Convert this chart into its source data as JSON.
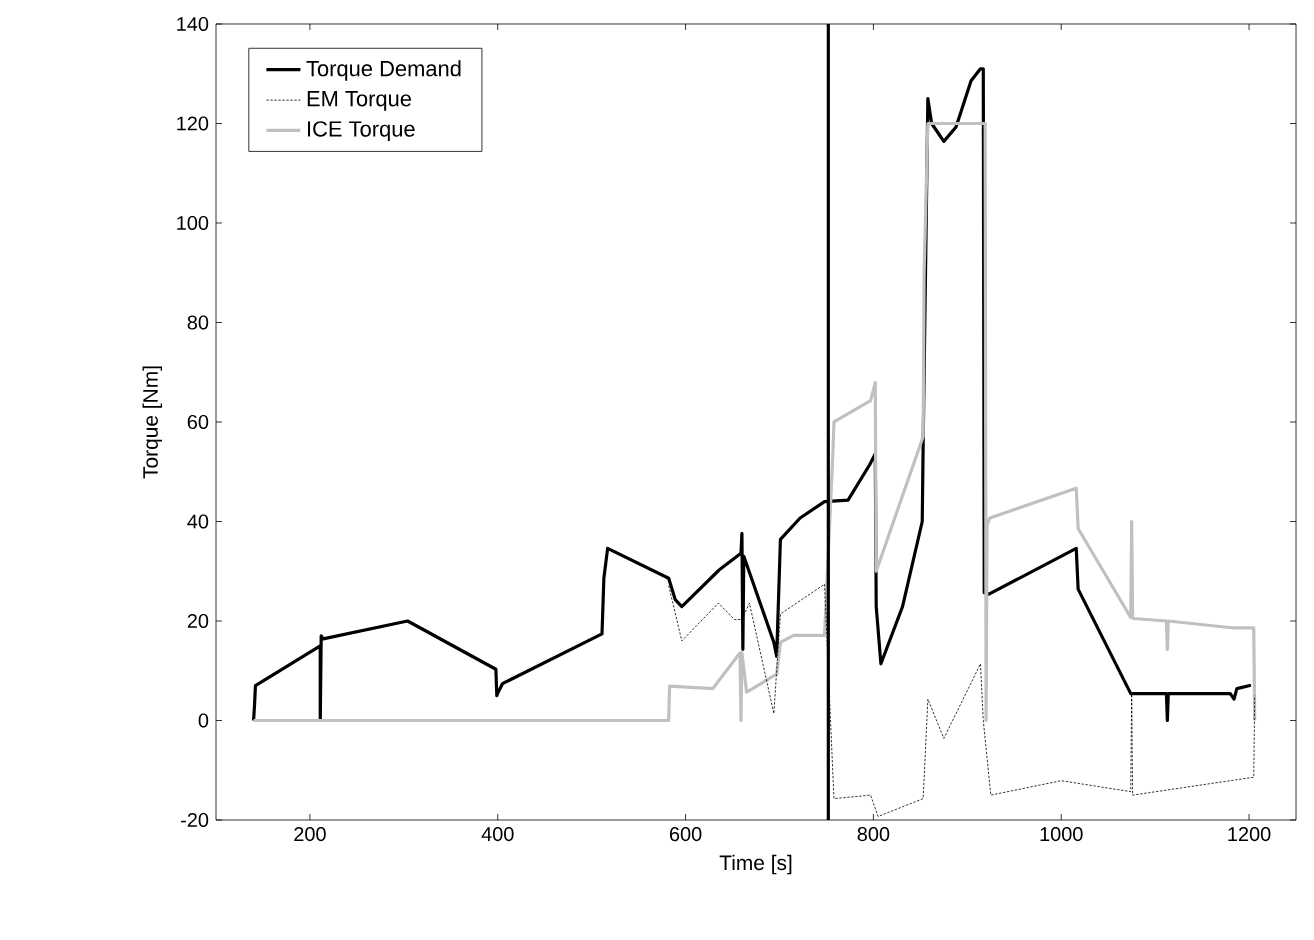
{
  "chart_data": {
    "type": "line",
    "xlabel": "Time [s]",
    "ylabel": "Torque [Nm]",
    "xlim": [
      100,
      1250
    ],
    "ylim": [
      -20,
      140
    ],
    "xticks": [
      200,
      400,
      600,
      800,
      1000,
      1200
    ],
    "yticks": [
      -20,
      0,
      20,
      40,
      60,
      80,
      100,
      120,
      140
    ],
    "grid": false,
    "legend": "top left",
    "marker": "none",
    "ref_lines": [
      {
        "axis": "x",
        "value": 752,
        "color": "#000000"
      }
    ],
    "series": [
      {
        "name": "Torque Demand",
        "color": "#000000",
        "line_style": "solid",
        "x": [
          140,
          141,
          142,
          211,
          211,
          212,
          214,
          304,
          398,
          399,
          400,
          405,
          511,
          513,
          517,
          582,
          589,
          596,
          636,
          659,
          660,
          661,
          662,
          694,
          697,
          701,
          722,
          748,
          773,
          796,
          802,
          803,
          808,
          831,
          852,
          853,
          858,
          862,
          875,
          888,
          904,
          914,
          917,
          918,
          923,
          1016,
          1018,
          1074,
          1112,
          1113,
          1114,
          1180,
          1184,
          1187,
          1202
        ],
        "values": [
          0,
          3,
          7,
          15,
          0,
          17,
          16.4,
          20,
          10.3,
          5,
          5.5,
          7.4,
          17.4,
          28.6,
          34.6,
          28.6,
          24.3,
          22.9,
          30.3,
          33.6,
          37.6,
          14.3,
          33,
          15.7,
          12.9,
          36.4,
          40.7,
          44,
          44.3,
          51.4,
          53.6,
          22.9,
          11.4,
          22.9,
          40,
          55.7,
          125,
          120,
          116.4,
          119.3,
          128.6,
          131,
          131,
          25.7,
          25.4,
          34.6,
          26.4,
          5.4,
          5.4,
          0,
          5.4,
          5.4,
          4.3,
          6.4,
          7.1
        ]
      },
      {
        "name": "EM Torque",
        "color": "#000000",
        "line_style": "dashed",
        "x": [
          582,
          596,
          635,
          652,
          660,
          668,
          694,
          701,
          748,
          757,
          758,
          797,
          805,
          853,
          858,
          875,
          914,
          917,
          925,
          1000,
          1074,
          1075,
          1076,
          1205,
          1206
        ],
        "values": [
          27.1,
          16,
          23.6,
          20.3,
          20.3,
          23.6,
          1.4,
          21.4,
          27.4,
          -11.4,
          -15.7,
          -15,
          -19.3,
          -15.7,
          4.3,
          -3.6,
          11.4,
          0,
          -15,
          -12.1,
          -14.3,
          5.7,
          -15,
          -11.4,
          5
        ]
      },
      {
        "name": "ICE Torque",
        "color": "#c0c0c0",
        "line_style": "solid",
        "x": [
          140,
          582,
          583,
          629,
          658,
          659,
          660,
          665,
          697,
          701,
          715,
          748,
          757,
          758,
          797,
          802,
          803,
          853,
          854,
          858,
          919,
          920,
          921,
          924,
          1016,
          1018,
          1074,
          1075,
          1076,
          1077,
          1112,
          1113,
          1114,
          1184,
          1205,
          1206
        ],
        "values": [
          0,
          0,
          6.9,
          6.4,
          13.6,
          0,
          13.6,
          5.7,
          9.3,
          15.7,
          17.1,
          17.1,
          54.3,
          60,
          64.3,
          67.9,
          30,
          57.1,
          90,
          120,
          120,
          0,
          39.3,
          40.7,
          46.7,
          38.6,
          20.7,
          40,
          20.7,
          20.5,
          20,
          14.3,
          20,
          18.6,
          18.6,
          0
        ]
      }
    ]
  }
}
